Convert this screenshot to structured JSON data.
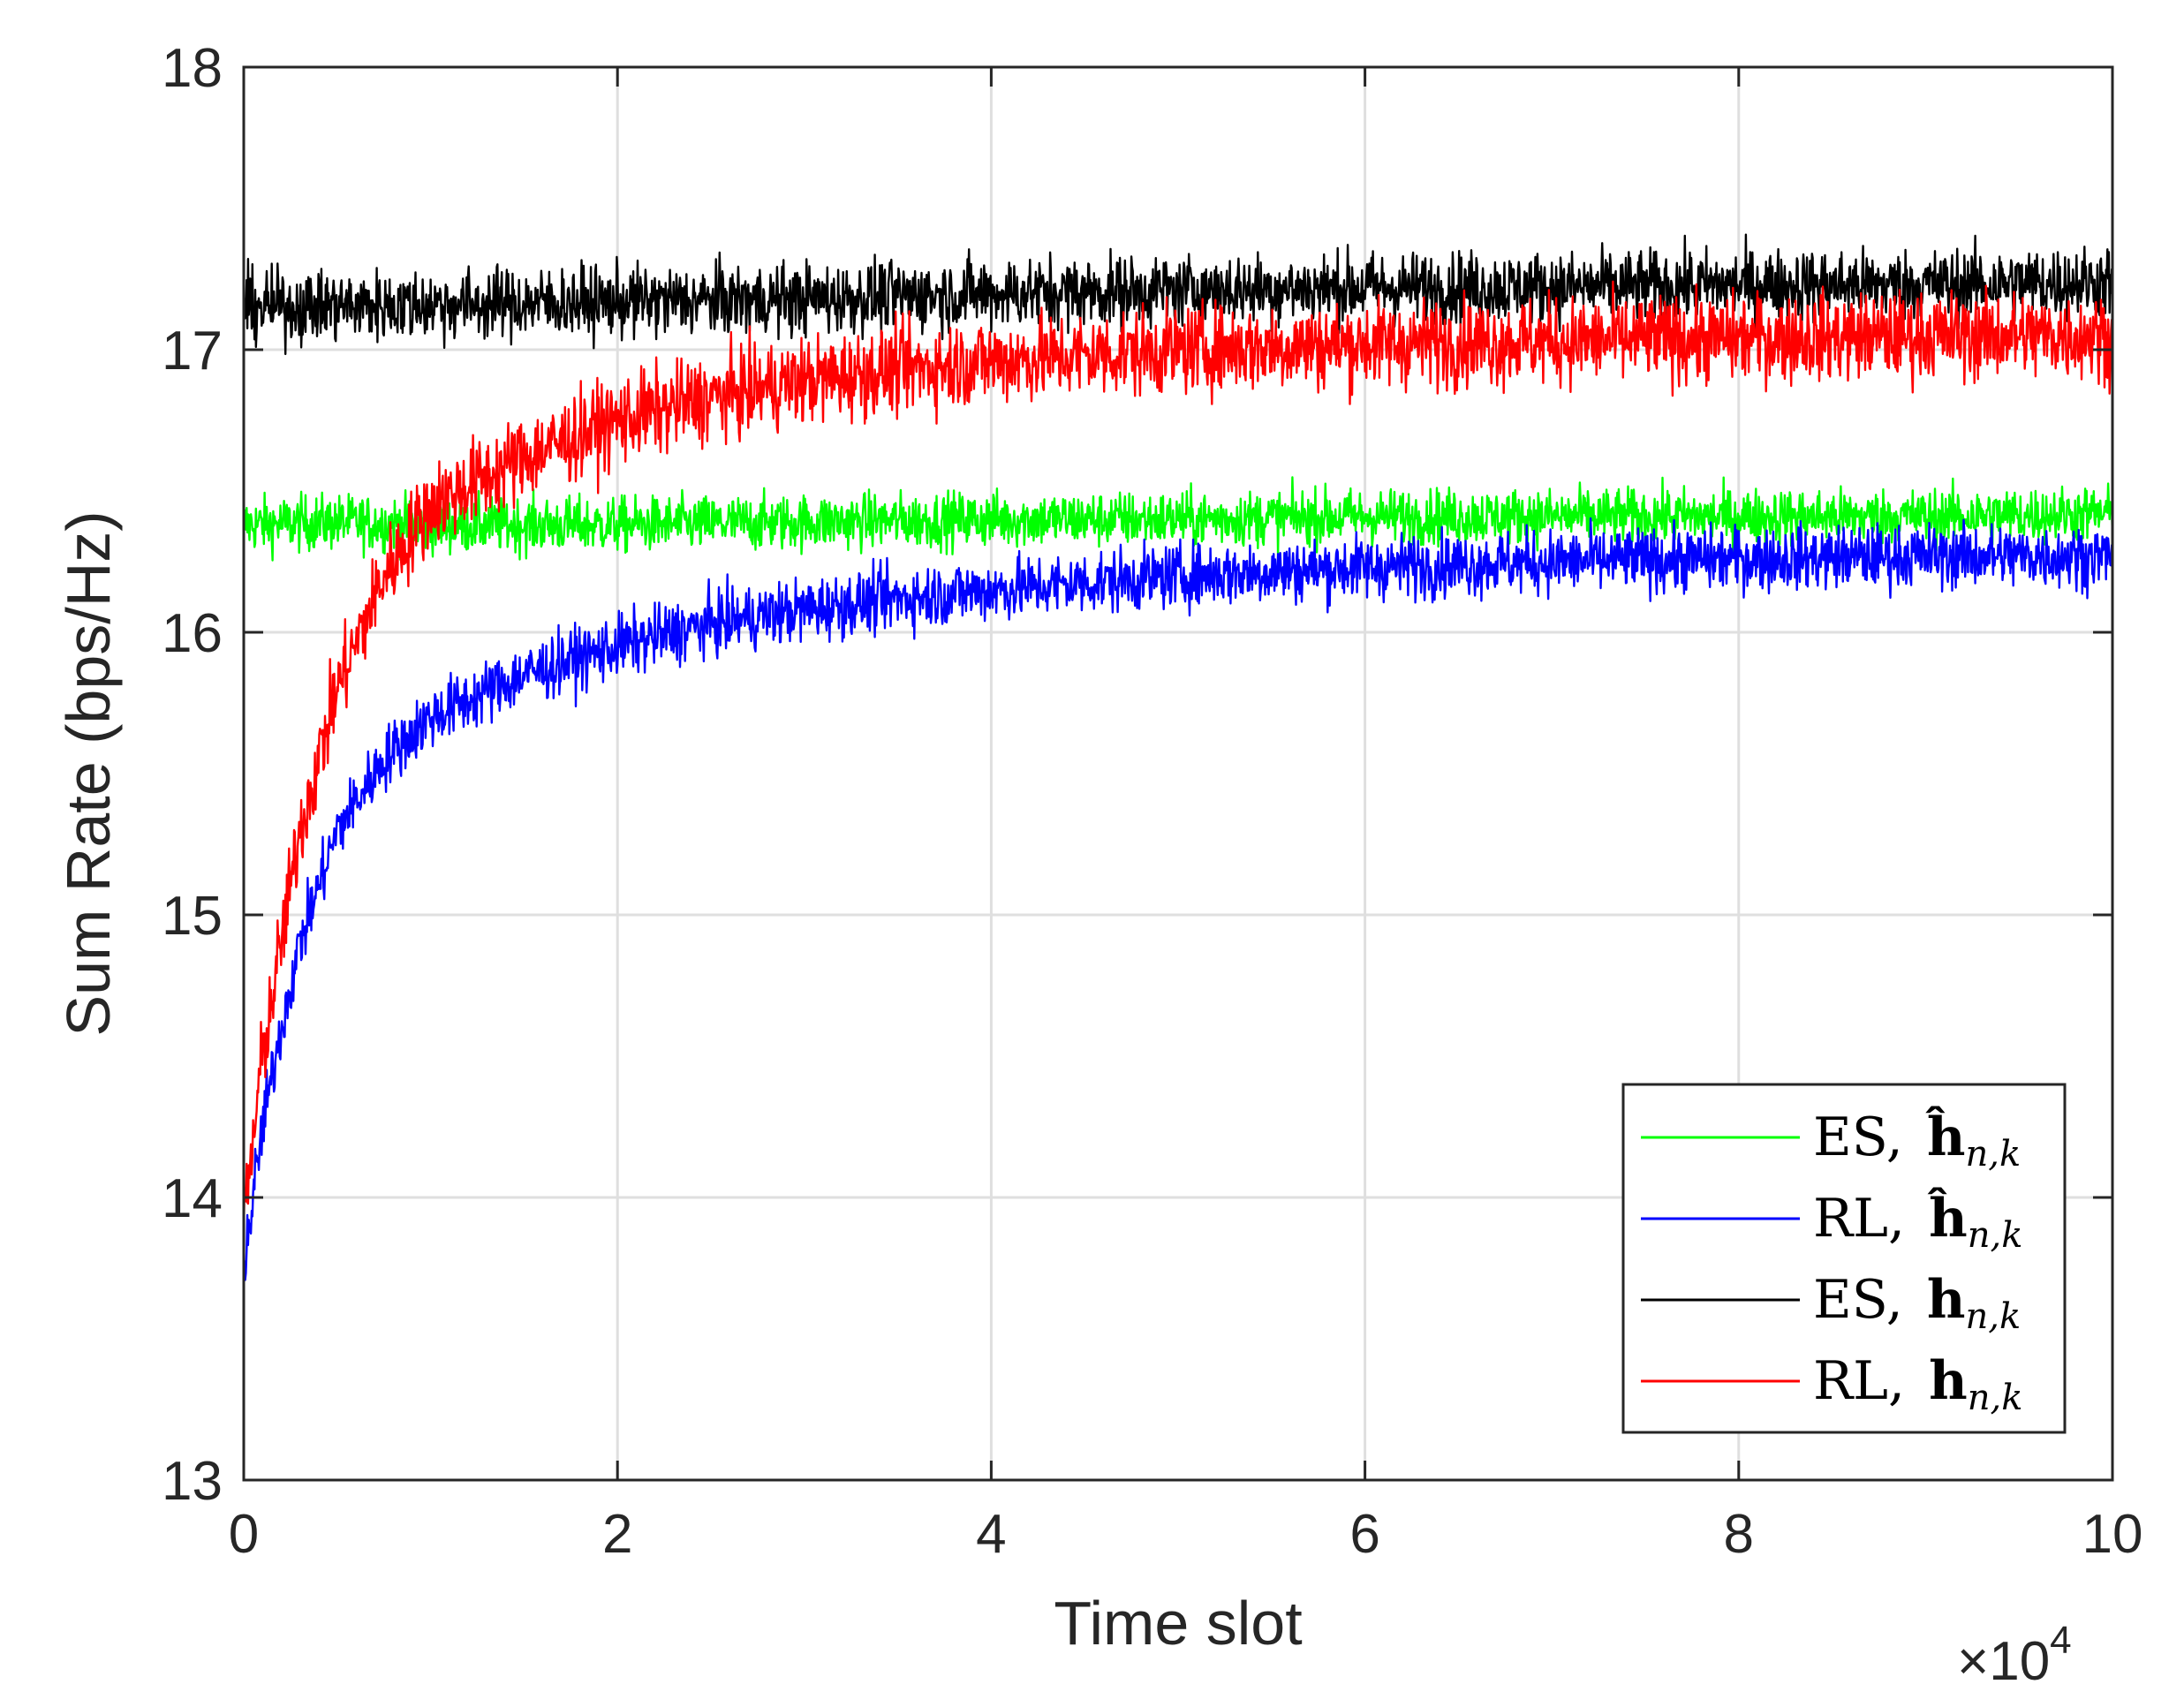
{
  "chart_data": {
    "type": "line",
    "title": "",
    "xlabel": "Time slot",
    "ylabel": "Sum Rate (bps/Hz)",
    "x_multiplier_label": "×10",
    "x_multiplier_exponent": "4",
    "xlim": [
      0,
      100000
    ],
    "ylim": [
      13,
      18
    ],
    "x_ticks": [
      0,
      20000,
      40000,
      60000,
      80000,
      100000
    ],
    "x_tick_labels": [
      "0",
      "2",
      "4",
      "6",
      "8",
      "10"
    ],
    "y_ticks": [
      13,
      14,
      15,
      16,
      17,
      18
    ],
    "y_tick_labels": [
      "13",
      "14",
      "15",
      "16",
      "17",
      "18"
    ],
    "grid": true,
    "legend_position": "bottom-right",
    "series": [
      {
        "name": "ES, ĥ_{n,k}",
        "legend_main": "ES, ",
        "legend_symbol": "ĥ",
        "legend_sub": "n,k",
        "color": "#00ff00",
        "x": [
          0,
          5000,
          10000,
          20000,
          30000,
          40000,
          50000,
          60000,
          70000,
          80000,
          90000,
          100000
        ],
        "y": [
          16.38,
          16.39,
          16.38,
          16.38,
          16.39,
          16.4,
          16.4,
          16.41,
          16.41,
          16.41,
          16.41,
          16.42
        ],
        "noise": 0.07
      },
      {
        "name": "RL, ĥ_{n,k}",
        "legend_main": "RL, ",
        "legend_symbol": "ĥ",
        "legend_sub": "n,k",
        "color": "#0000ff",
        "x": [
          0,
          1000,
          2000,
          3000,
          5000,
          7500,
          10000,
          15000,
          20000,
          25000,
          30000,
          35000,
          40000,
          50000,
          60000,
          70000,
          80000,
          90000,
          100000
        ],
        "y": [
          13.75,
          14.25,
          14.6,
          14.9,
          15.3,
          15.55,
          15.7,
          15.85,
          15.95,
          16.03,
          16.08,
          16.12,
          16.15,
          16.2,
          16.23,
          16.25,
          16.26,
          16.27,
          16.27
        ],
        "noise": 0.08
      },
      {
        "name": "ES, h_{n,k}",
        "legend_main": "ES, ",
        "legend_symbol": "h",
        "legend_sub": "n,k",
        "color": "#000000",
        "x": [
          0,
          10000,
          20000,
          30000,
          40000,
          50000,
          60000,
          70000,
          80000,
          90000,
          100000
        ],
        "y": [
          17.15,
          17.16,
          17.17,
          17.18,
          17.2,
          17.21,
          17.22,
          17.22,
          17.23,
          17.23,
          17.24
        ],
        "noise": 0.09
      },
      {
        "name": "RL, h_{n,k}",
        "legend_main": "RL, ",
        "legend_symbol": "h",
        "legend_sub": "n,k",
        "color": "#ff0000",
        "x": [
          0,
          1000,
          2000,
          3000,
          5000,
          7500,
          10000,
          15000,
          20000,
          25000,
          30000,
          35000,
          40000,
          50000,
          60000,
          70000,
          80000,
          90000,
          100000
        ],
        "y": [
          13.9,
          14.5,
          14.9,
          15.3,
          15.8,
          16.2,
          16.45,
          16.62,
          16.75,
          16.83,
          16.89,
          16.93,
          16.96,
          17.0,
          17.02,
          17.03,
          17.04,
          17.05,
          17.05
        ],
        "noise": 0.11
      }
    ]
  }
}
